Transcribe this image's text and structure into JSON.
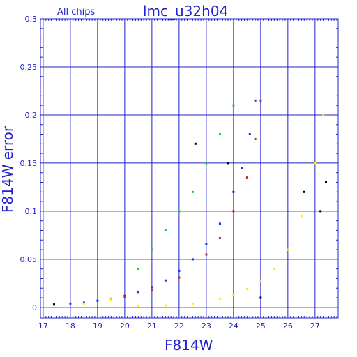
{
  "chart_data": {
    "type": "scatter",
    "title": "lmc_u32h04",
    "subtitle": "All chips",
    "xlabel": "F814W",
    "ylabel": "F814W error",
    "xlim": [
      16.9,
      27.85
    ],
    "ylim": [
      -0.011,
      0.3
    ],
    "xticks": [
      "17",
      "18",
      "19",
      "20",
      "21",
      "22",
      "23",
      "24",
      "25",
      "26",
      "27"
    ],
    "yticks": [
      "0",
      "0.05",
      "0.1",
      "0.15",
      "0.2",
      "0.25",
      "0.3"
    ],
    "grid": true,
    "colors": {
      "axis": "#2222cc",
      "grid": "#2222cc",
      "red": "#cc2222",
      "blue": "#1133ee",
      "green": "#22cc22",
      "black": "#000000",
      "yellow": "#ffee00"
    },
    "series": [
      {
        "color": "blue",
        "x": [
          17.4,
          18.0,
          18.5,
          19.0,
          19.5,
          20.0,
          20.5,
          21.0,
          21.5,
          22.0,
          22.5,
          23.0,
          23.5,
          24.0,
          24.3,
          24.6,
          24.8
        ],
        "y": [
          0.003,
          0.004,
          0.005,
          0.007,
          0.009,
          0.012,
          0.016,
          0.021,
          0.028,
          0.038,
          0.05,
          0.066,
          0.087,
          0.12,
          0.145,
          0.18,
          0.215
        ]
      },
      {
        "color": "red",
        "x": [
          20.0,
          21.0,
          22.0,
          23.0,
          23.5,
          24.0,
          24.5,
          24.8,
          25.0
        ],
        "y": [
          0.011,
          0.018,
          0.031,
          0.055,
          0.072,
          0.1,
          0.135,
          0.175,
          0.215
        ]
      },
      {
        "color": "yellow",
        "x": [
          18.5,
          19.5,
          20.5,
          21.5,
          22.5,
          23.5,
          24.0,
          24.5,
          25.0,
          25.5,
          26.0,
          26.5,
          27.0,
          27.3
        ],
        "y": [
          0.004,
          0.008,
          0.001,
          0.002,
          0.004,
          0.009,
          0.013,
          0.019,
          0.027,
          0.04,
          0.06,
          0.095,
          0.15,
          0.2
        ]
      },
      {
        "color": "green",
        "x": [
          20.5,
          21.0,
          21.5,
          22.0,
          22.5,
          23.0,
          23.5,
          24.0
        ],
        "y": [
          0.04,
          0.06,
          0.08,
          0.1,
          0.12,
          0.15,
          0.18,
          0.21
        ]
      },
      {
        "color": "black",
        "x": [
          17.4,
          22.6,
          23.8,
          25.0,
          26.6,
          27.2,
          27.4
        ],
        "y": [
          0.003,
          0.17,
          0.15,
          0.01,
          0.12,
          0.1,
          0.13
        ]
      }
    ]
  }
}
